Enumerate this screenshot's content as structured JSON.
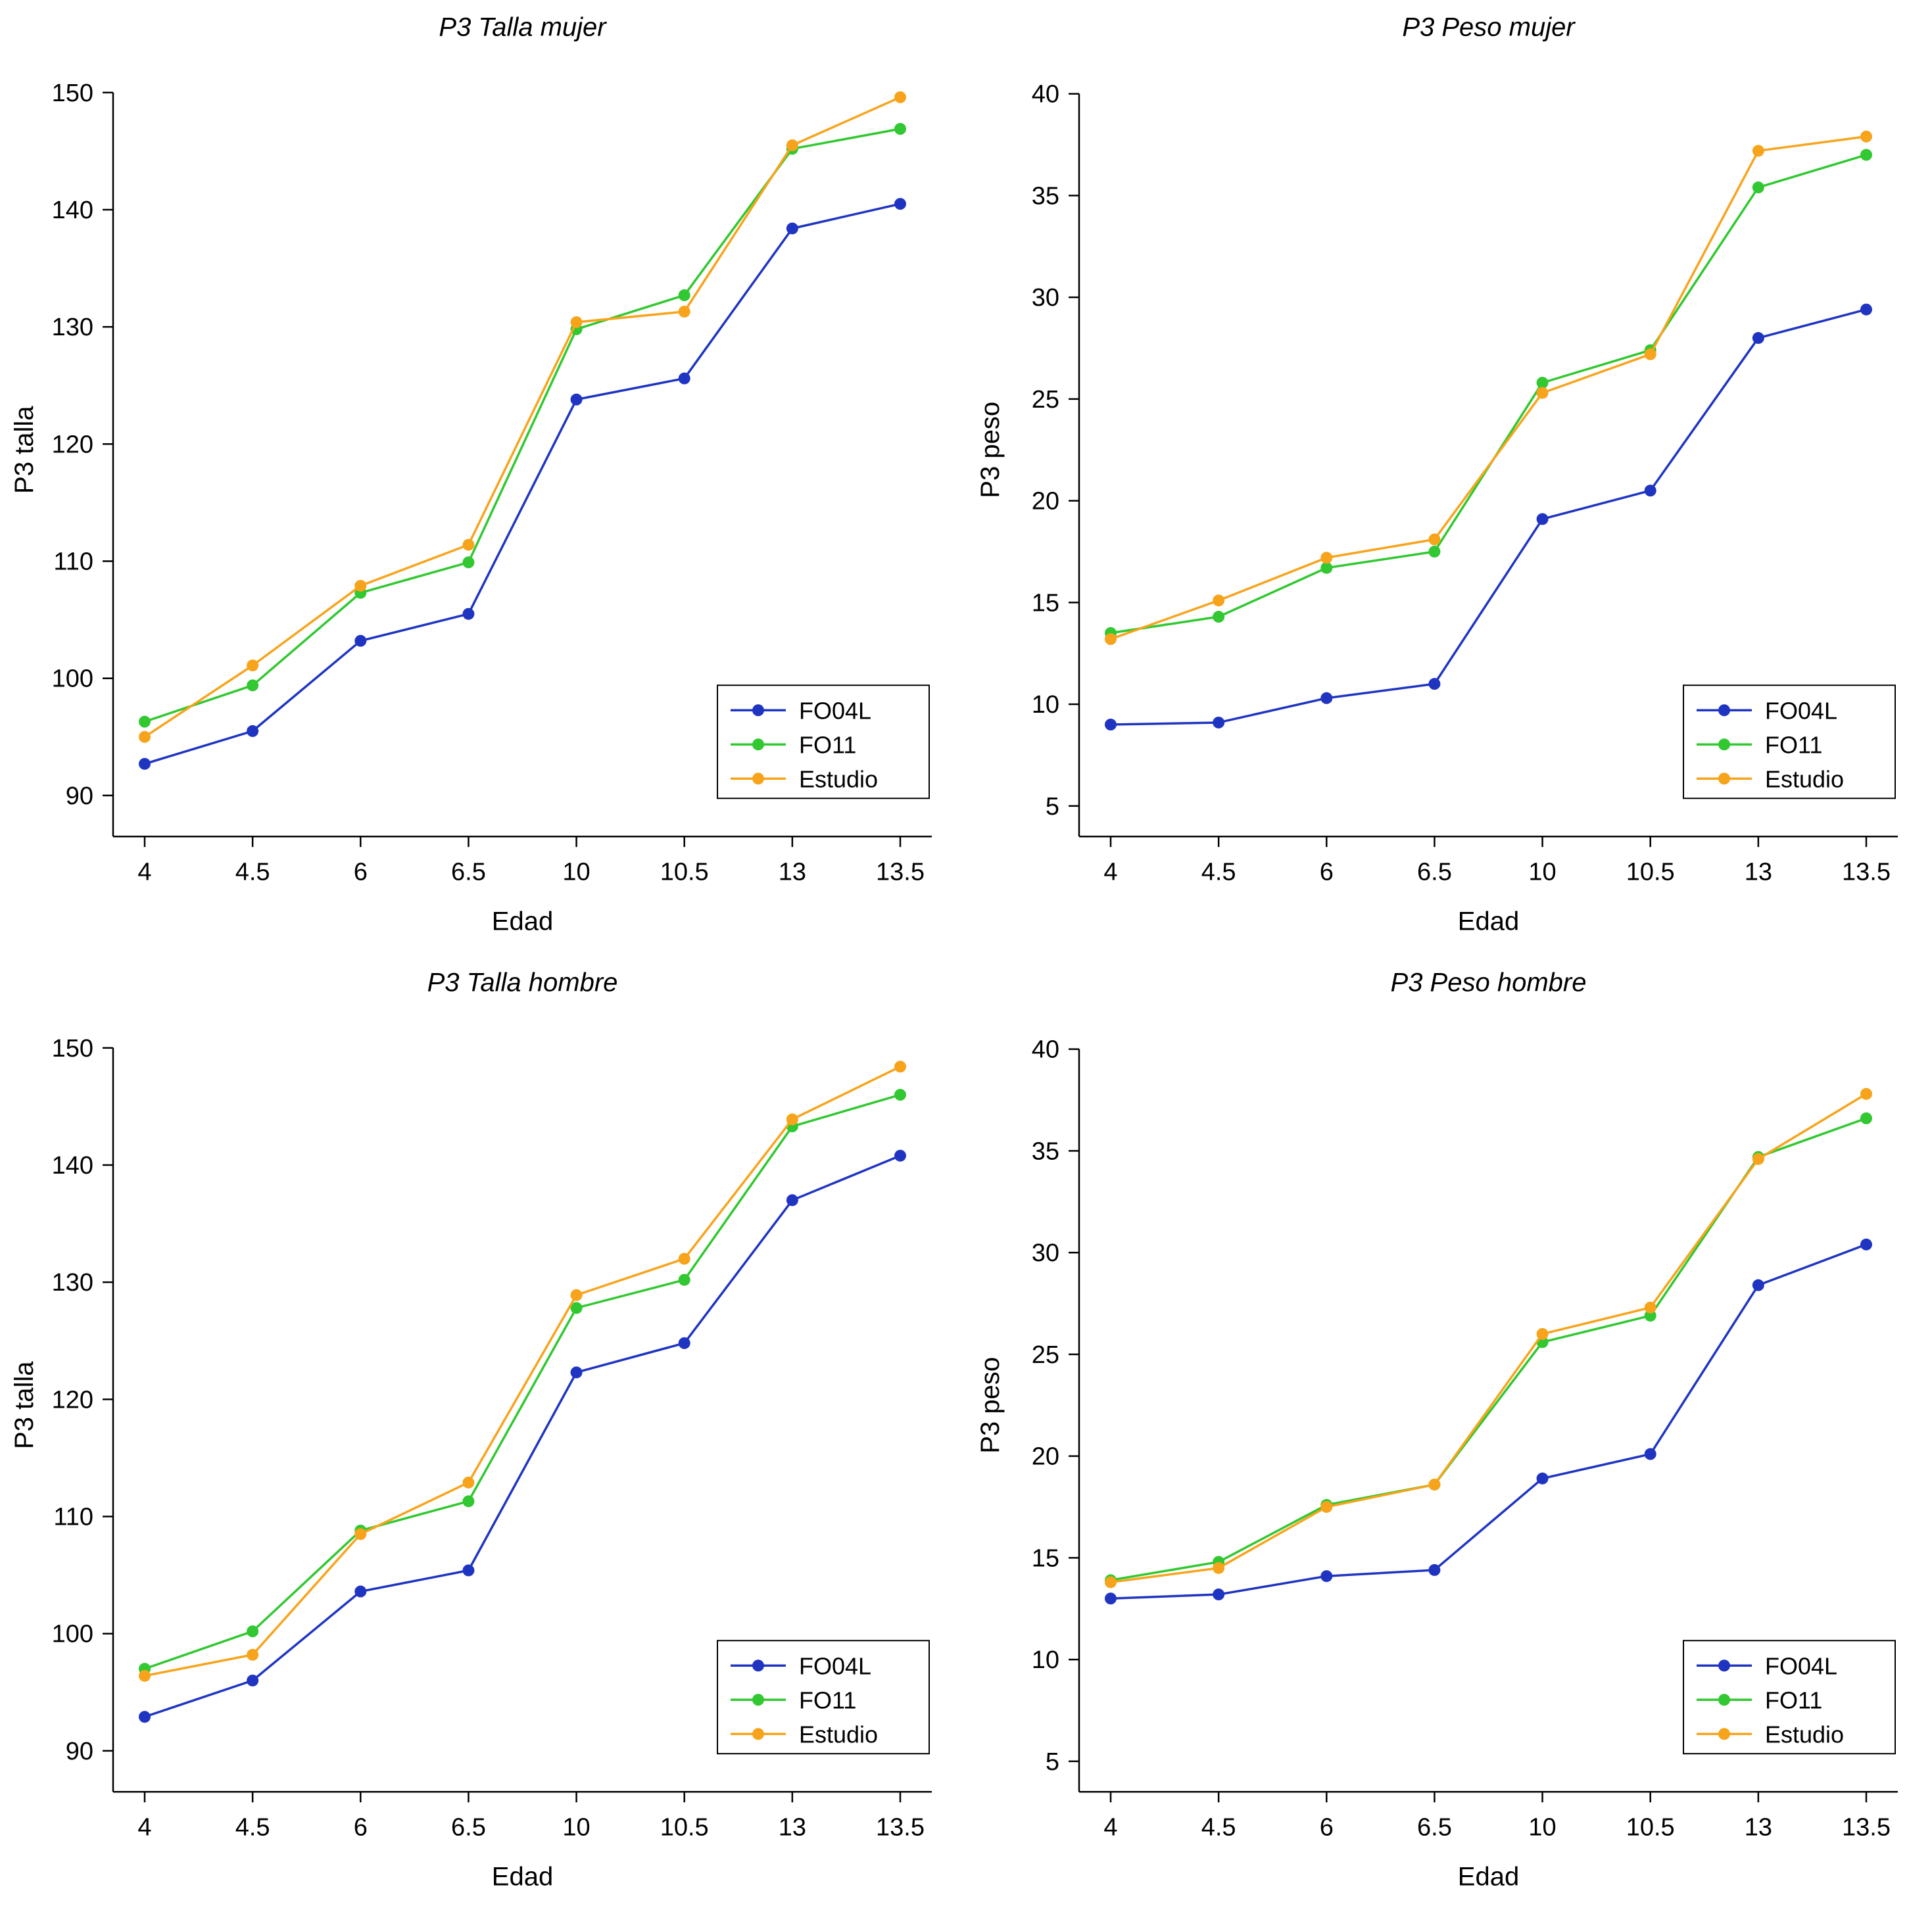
{
  "page": {
    "background": "#ffffff",
    "text_color": "#000000",
    "axis_color": "#000000"
  },
  "colors": {
    "FO04L": "#1f35c2",
    "FO11": "#31c831",
    "Estudio": "#f7a41c"
  },
  "legend": {
    "entries": [
      "FO04L",
      "FO11",
      "Estudio"
    ],
    "position": "bottom-right"
  },
  "chart_data": [
    {
      "type": "line",
      "title": "P3 Talla mujer",
      "xlabel": "Edad",
      "ylabel": "P3 talla",
      "categories": [
        "4",
        "4.5",
        "6",
        "6.5",
        "10",
        "10.5",
        "13",
        "13.5"
      ],
      "yticks": [
        90,
        100,
        110,
        120,
        130,
        140,
        150
      ],
      "ylim": [
        86.5,
        152.5
      ],
      "grid": false,
      "legend_position": "bottom-right",
      "series": [
        {
          "name": "FO04L",
          "color": "#1f35c2",
          "values": [
            92.7,
            95.5,
            103.2,
            105.5,
            123.8,
            125.6,
            138.4,
            140.5
          ]
        },
        {
          "name": "FO11",
          "color": "#31c831",
          "values": [
            96.3,
            99.4,
            107.3,
            109.9,
            129.8,
            132.7,
            145.2,
            146.9
          ]
        },
        {
          "name": "Estudio",
          "color": "#f7a41c",
          "values": [
            95.0,
            101.1,
            107.9,
            111.4,
            130.4,
            131.3,
            145.5,
            149.6
          ]
        }
      ]
    },
    {
      "type": "line",
      "title": "P3 Peso mujer",
      "xlabel": "Edad",
      "ylabel": "P3 peso",
      "categories": [
        "4",
        "4.5",
        "6",
        "6.5",
        "10",
        "10.5",
        "13",
        "13.5"
      ],
      "yticks": [
        5,
        10,
        15,
        20,
        25,
        30,
        35,
        40
      ],
      "ylim": [
        3.5,
        41.5
      ],
      "grid": false,
      "legend_position": "bottom-right",
      "series": [
        {
          "name": "FO04L",
          "color": "#1f35c2",
          "values": [
            9.0,
            9.1,
            10.3,
            11.0,
            19.1,
            20.5,
            28.0,
            29.4
          ]
        },
        {
          "name": "FO11",
          "color": "#31c831",
          "values": [
            13.5,
            14.3,
            16.7,
            17.5,
            25.8,
            27.4,
            35.4,
            37.0
          ]
        },
        {
          "name": "Estudio",
          "color": "#f7a41c",
          "values": [
            13.2,
            15.1,
            17.2,
            18.1,
            25.3,
            27.2,
            37.2,
            37.9
          ]
        }
      ]
    },
    {
      "type": "line",
      "title": "P3 Talla hombre",
      "xlabel": "Edad",
      "ylabel": "P3 talla",
      "categories": [
        "4",
        "4.5",
        "6",
        "6.5",
        "10",
        "10.5",
        "13",
        "13.5"
      ],
      "yticks": [
        90,
        100,
        110,
        120,
        130,
        140,
        150
      ],
      "ylim": [
        86.5,
        152.5
      ],
      "grid": false,
      "legend_position": "bottom-right",
      "series": [
        {
          "name": "FO04L",
          "color": "#1f35c2",
          "values": [
            92.9,
            96.0,
            103.6,
            105.4,
            122.3,
            124.8,
            137.0,
            140.8
          ]
        },
        {
          "name": "FO11",
          "color": "#31c831",
          "values": [
            97.0,
            100.2,
            108.8,
            111.3,
            127.8,
            130.2,
            143.3,
            146.0
          ]
        },
        {
          "name": "Estudio",
          "color": "#f7a41c",
          "values": [
            96.4,
            98.2,
            108.5,
            112.9,
            128.9,
            132.0,
            143.9,
            148.4
          ]
        }
      ]
    },
    {
      "type": "line",
      "title": "P3 Peso hombre",
      "xlabel": "Edad",
      "ylabel": "P3 peso",
      "categories": [
        "4",
        "4.5",
        "6",
        "6.5",
        "10",
        "10.5",
        "13",
        "13.5"
      ],
      "yticks": [
        5,
        10,
        15,
        20,
        25,
        30,
        35,
        40
      ],
      "ylim": [
        3.5,
        41.5
      ],
      "grid": false,
      "legend_position": "bottom-right",
      "series": [
        {
          "name": "FO04L",
          "color": "#1f35c2",
          "values": [
            13.0,
            13.2,
            14.1,
            14.4,
            18.9,
            20.1,
            28.4,
            30.4
          ]
        },
        {
          "name": "FO11",
          "color": "#31c831",
          "values": [
            13.9,
            14.8,
            17.6,
            18.6,
            25.6,
            26.9,
            34.7,
            36.6
          ]
        },
        {
          "name": "Estudio",
          "color": "#f7a41c",
          "values": [
            13.8,
            14.5,
            17.5,
            18.6,
            26.0,
            27.3,
            34.6,
            37.8
          ]
        }
      ]
    }
  ]
}
